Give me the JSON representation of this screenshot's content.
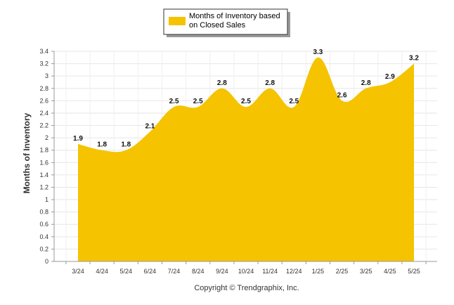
{
  "chart_data": {
    "type": "area",
    "categories": [
      "3/24",
      "4/24",
      "5/24",
      "6/24",
      "7/24",
      "8/24",
      "9/24",
      "10/24",
      "11/24",
      "12/24",
      "1/25",
      "2/25",
      "3/25",
      "4/25",
      "5/25"
    ],
    "series": [
      {
        "name": "Months of Inventory based on Closed Sales",
        "values": [
          1.9,
          1.8,
          1.8,
          2.1,
          2.5,
          2.5,
          2.8,
          2.5,
          2.8,
          2.5,
          3.3,
          2.6,
          2.8,
          2.9,
          3.2
        ],
        "color": "#F5C300"
      }
    ],
    "legend_lines": [
      "Months of Inventory based",
      "on Closed Sales"
    ],
    "ylabel": "Months of Inventory",
    "ylim": [
      0,
      3.4
    ],
    "yticks": [
      "0",
      "0.2",
      "0.4",
      "0.6",
      "0.8",
      "1",
      "1.2",
      "1.4",
      "1.6",
      "1.8",
      "2",
      "2.2",
      "2.4",
      "2.6",
      "2.8",
      "3",
      "3.2",
      "3.4"
    ],
    "legend_position": "top-center",
    "grid": true
  },
  "footer": "Copyright © Trendgraphix, Inc."
}
